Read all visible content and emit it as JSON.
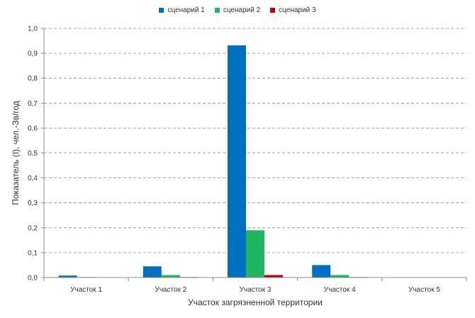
{
  "chart_data": {
    "type": "bar",
    "title": "",
    "xlabel": "Участок загрязненной территории",
    "ylabel": "Показатель (I), чел.-Зв/год",
    "categories": [
      "Участок 1",
      "Участок 2",
      "Участок 3",
      "Участок 4",
      "Участок 5"
    ],
    "series": [
      {
        "name": "сценарий 1",
        "color": "#0070C0",
        "values": [
          0.008,
          0.045,
          0.932,
          0.05,
          0.0
        ]
      },
      {
        "name": "сценарий 2",
        "color": "#22B561",
        "values": [
          0.002,
          0.01,
          0.19,
          0.01,
          0.0
        ]
      },
      {
        "name": "сценарий 3",
        "color": "#C00000",
        "values": [
          0.0,
          0.002,
          0.01,
          0.002,
          0.0
        ]
      }
    ],
    "ylim": [
      0,
      1.0
    ],
    "yticks": [
      "0,0",
      "0,1",
      "0,2",
      "0,3",
      "0,4",
      "0,5",
      "0,6",
      "0,7",
      "0,8",
      "0,9",
      "1,0"
    ],
    "grid": true,
    "legend_position": "top-center"
  }
}
